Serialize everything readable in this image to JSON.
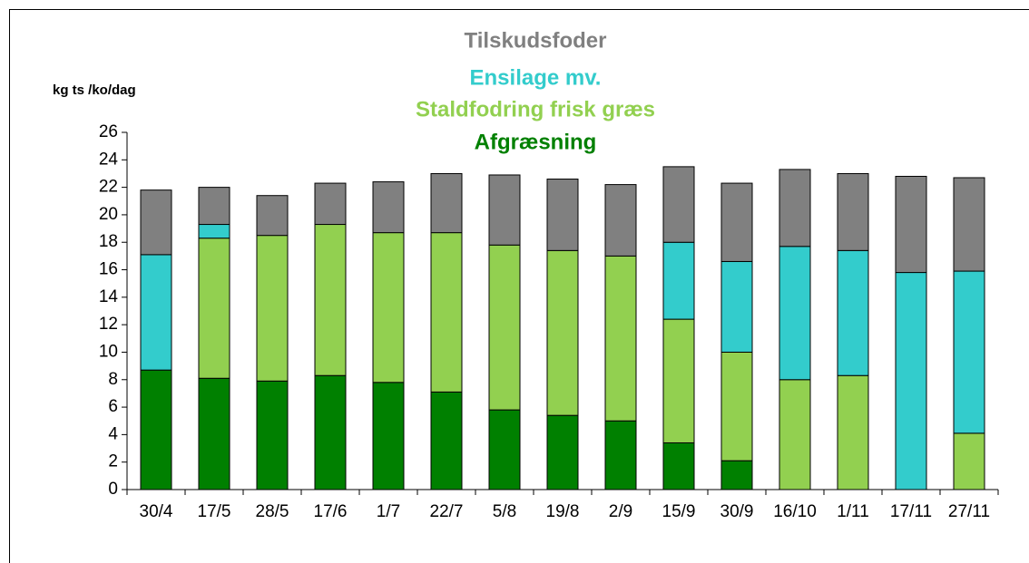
{
  "chart_data": {
    "type": "stacked_bar",
    "y_label": "kg ts /ko/dag",
    "categories": [
      "30/4",
      "17/5",
      "28/5",
      "17/6",
      "1/7",
      "22/7",
      "5/8",
      "19/8",
      "2/9",
      "15/9",
      "30/9",
      "16/10",
      "1/11",
      "17/11",
      "27/11"
    ],
    "series": [
      {
        "name": "Afgræsning",
        "color": "#008000",
        "values": [
          8.7,
          8.1,
          7.9,
          8.3,
          7.8,
          7.1,
          5.8,
          5.4,
          5.0,
          3.4,
          2.1,
          0,
          0,
          0,
          0
        ]
      },
      {
        "name": "Staldfodring frisk græs",
        "color": "#92d050",
        "values": [
          0,
          10.2,
          10.6,
          11.0,
          10.9,
          11.6,
          12.0,
          12.0,
          12.0,
          9.0,
          7.9,
          8.0,
          8.3,
          0,
          4.1
        ]
      },
      {
        "name": "Ensilage mv.",
        "color": "#33cccc",
        "values": [
          8.4,
          1.0,
          0,
          0,
          0,
          0,
          0,
          0,
          0,
          5.6,
          6.6,
          9.7,
          9.1,
          15.8,
          11.8
        ]
      },
      {
        "name": "Tilskudsfoder",
        "color": "#808080",
        "values": [
          4.7,
          2.7,
          2.9,
          3.0,
          3.7,
          4.3,
          5.1,
          5.2,
          5.2,
          5.5,
          5.7,
          5.6,
          5.6,
          7.0,
          6.8
        ]
      }
    ],
    "ylim": [
      0,
      26
    ],
    "yticks": [
      0,
      2,
      4,
      6,
      8,
      10,
      12,
      14,
      16,
      18,
      20,
      22,
      24,
      26
    ]
  }
}
